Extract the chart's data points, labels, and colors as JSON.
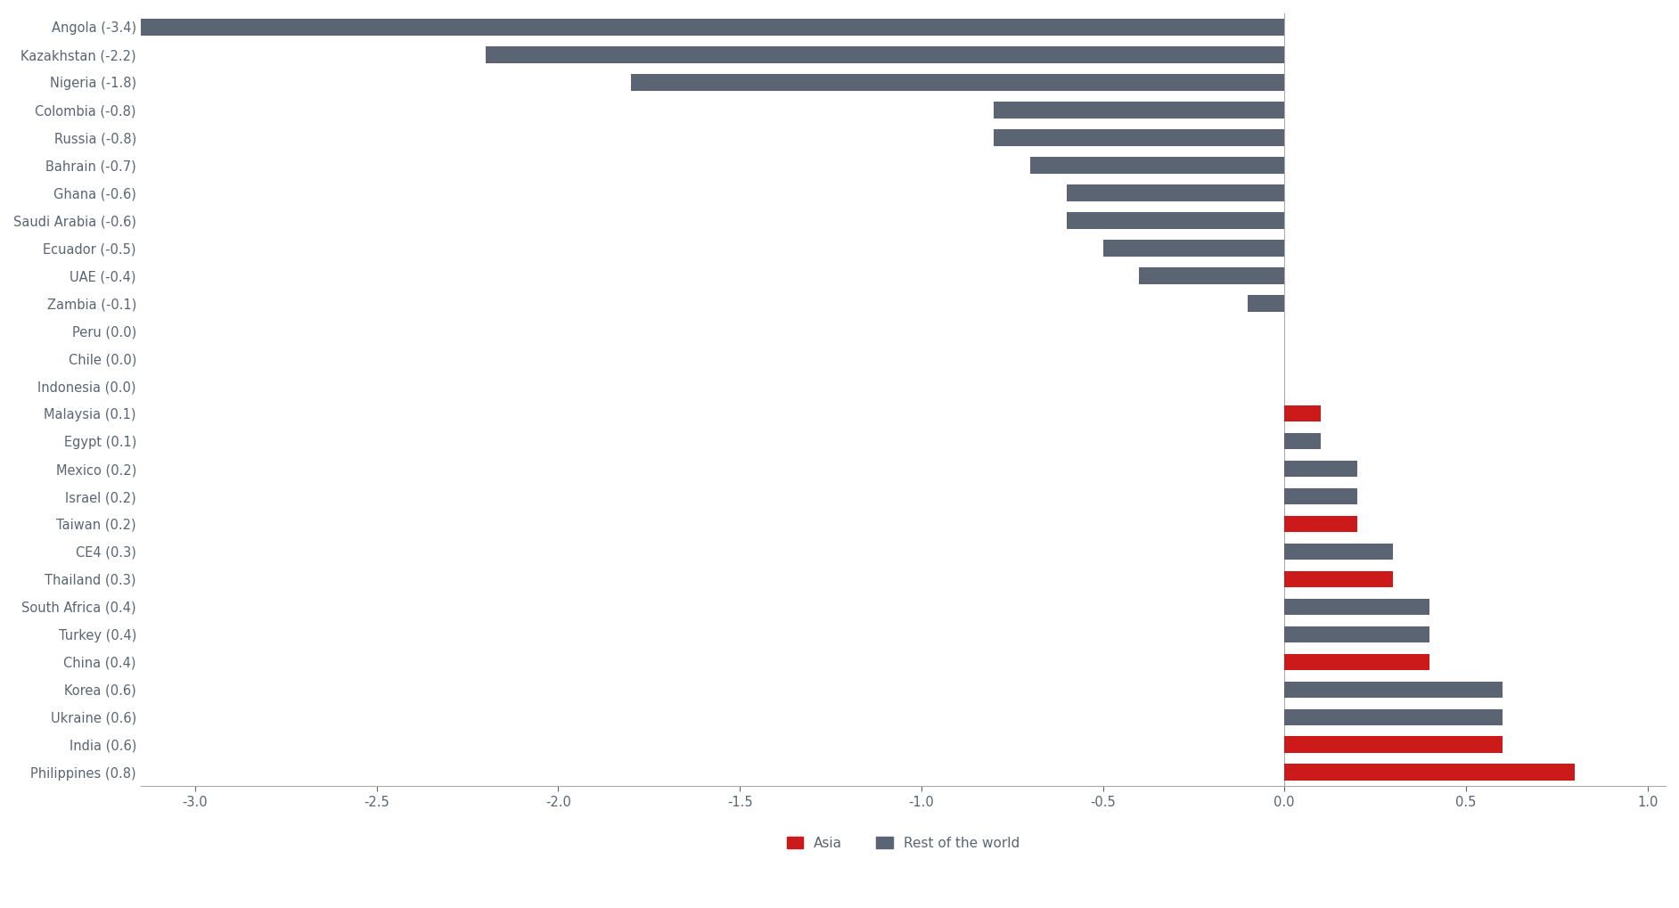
{
  "categories": [
    "Angola (-3.4)",
    "Kazakhstan (-2.2)",
    "Nigeria (-1.8)",
    "Colombia (-0.8)",
    "Russia (-0.8)",
    "Bahrain (-0.7)",
    "Ghana (-0.6)",
    "Saudi Arabia (-0.6)",
    "Ecuador (-0.5)",
    "UAE (-0.4)",
    "Zambia (-0.1)",
    "Peru (0.0)",
    "Chile (0.0)",
    "Indonesia (0.0)",
    "Malaysia (0.1)",
    "Egypt (0.1)",
    "Mexico (0.2)",
    "Israel (0.2)",
    "Taiwan (0.2)",
    "CE4 (0.3)",
    "Thailand (0.3)",
    "South Africa (0.4)",
    "Turkey (0.4)",
    "China (0.4)",
    "Korea (0.6)",
    "Ukraine (0.6)",
    "India (0.6)",
    "Philippines (0.8)"
  ],
  "values": [
    -3.4,
    -2.2,
    -1.8,
    -0.8,
    -0.8,
    -0.7,
    -0.6,
    -0.6,
    -0.5,
    -0.4,
    -0.1,
    0.0,
    0.0,
    0.0,
    0.1,
    0.1,
    0.2,
    0.2,
    0.2,
    0.3,
    0.3,
    0.4,
    0.4,
    0.4,
    0.6,
    0.6,
    0.6,
    0.8
  ],
  "is_asia": [
    false,
    false,
    false,
    false,
    false,
    false,
    false,
    false,
    false,
    false,
    false,
    false,
    false,
    false,
    true,
    false,
    false,
    false,
    true,
    false,
    true,
    false,
    false,
    true,
    false,
    false,
    true,
    true
  ],
  "asia_color": "#cc1a1a",
  "rotw_color": "#5a6472",
  "background_color": "#ffffff",
  "xlim": [
    -3.15,
    1.05
  ],
  "xticks": [
    -3.0,
    -2.5,
    -2.0,
    -1.5,
    -1.0,
    -0.5,
    0.0,
    0.5,
    1.0
  ],
  "bar_height": 0.6,
  "legend_asia": "Asia",
  "legend_rotw": "Rest of the world",
  "ylabel_fontsize": 10.5,
  "tick_fontsize": 10.5,
  "legend_fontsize": 11
}
